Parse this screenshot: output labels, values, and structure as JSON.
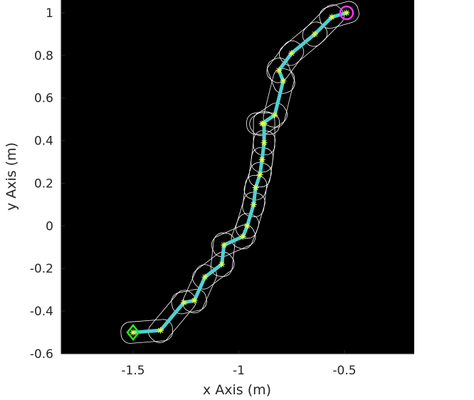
{
  "chart_data": {
    "type": "line",
    "xlabel": "x Axis (m)",
    "ylabel": "y Axis (m)",
    "xlim": [
      -1.84,
      -0.17
    ],
    "ylim": [
      -0.6,
      1.06
    ],
    "x_ticks": [
      -1.5,
      -1,
      -0.5
    ],
    "y_ticks": [
      -0.6,
      -0.4,
      -0.2,
      0,
      0.2,
      0.4,
      0.6,
      0.8,
      1
    ],
    "x_tick_labels": [
      "-1.5",
      "-1",
      "-0.5"
    ],
    "y_tick_labels": [
      "-0.6",
      "-0.4",
      "-0.2",
      "0",
      "0.2",
      "0.4",
      "0.6",
      "0.8",
      "1"
    ],
    "plot_background": "#000000",
    "path_color": "#4fd1d0",
    "waypoint_color": "#e8ff4a",
    "footprint_color": "#ffffff",
    "start_marker": {
      "shape": "diamond",
      "color": "#22ee22",
      "x": -1.5,
      "y": -0.5
    },
    "goal_marker": {
      "shape": "circle",
      "color": "#ff33ff",
      "x": -0.49,
      "y": 1.0
    },
    "series": [
      {
        "x": [
          -1.5,
          -1.37,
          -1.26,
          -1.21,
          -1.16,
          -1.08,
          -1.07,
          -0.98,
          -0.96,
          -0.93,
          -0.92,
          -0.9,
          -0.89,
          -0.88,
          -0.88,
          -0.89,
          -0.83,
          -0.79,
          -0.81,
          -0.75,
          -0.64,
          -0.56,
          -0.49
        ],
        "y": [
          -0.5,
          -0.49,
          -0.36,
          -0.35,
          -0.24,
          -0.18,
          -0.09,
          -0.05,
          0.0,
          0.1,
          0.18,
          0.24,
          0.31,
          0.39,
          0.48,
          0.48,
          0.52,
          0.68,
          0.73,
          0.81,
          0.9,
          0.98,
          1.0
        ]
      }
    ]
  }
}
